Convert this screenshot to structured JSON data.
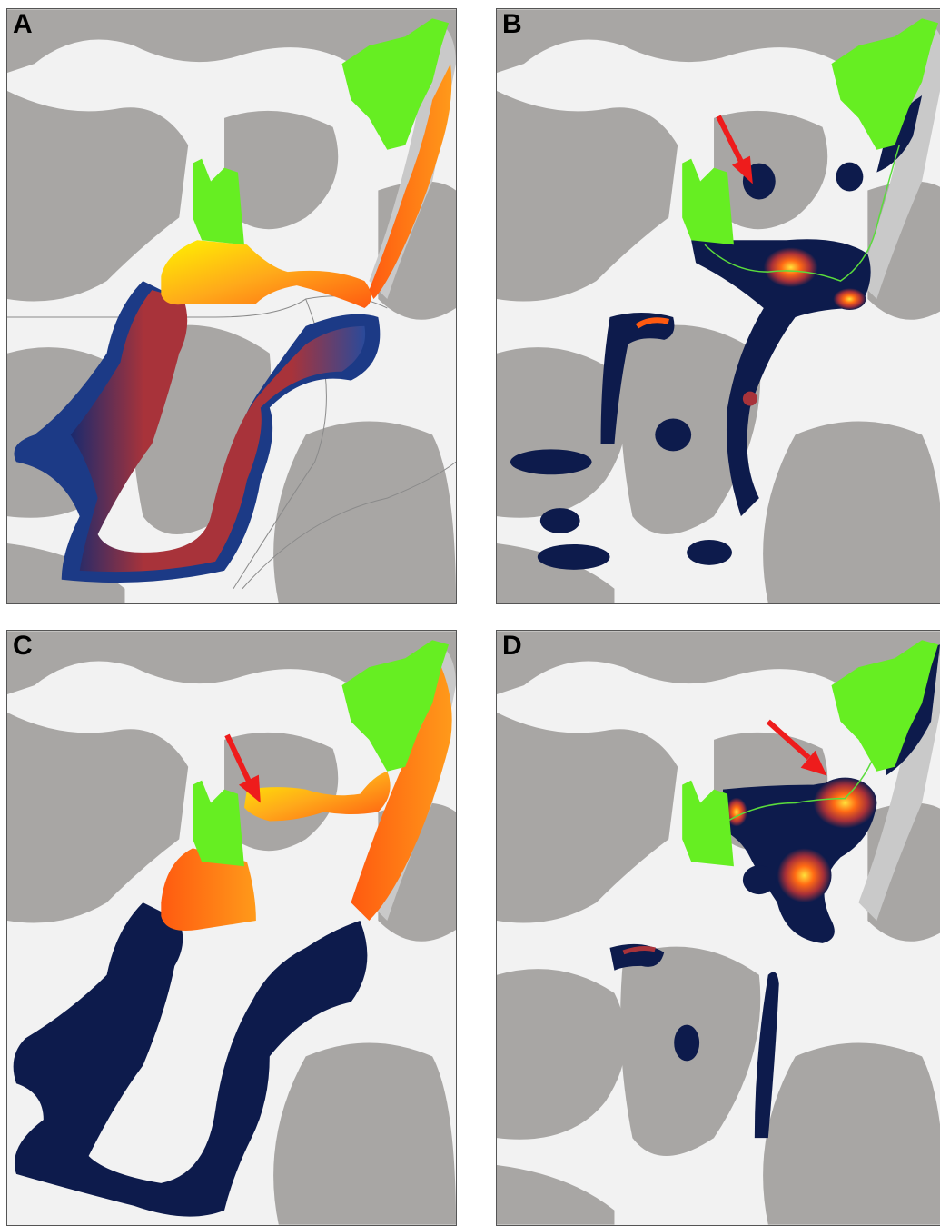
{
  "figure": {
    "panels": [
      {
        "label": "A",
        "scenario": "wide-corridor",
        "arrow": false
      },
      {
        "label": "B",
        "scenario": "patch-centrality",
        "arrow": true
      },
      {
        "label": "C",
        "scenario": "wide-corridor",
        "arrow": true
      },
      {
        "label": "D",
        "scenario": "patch-centrality",
        "arrow": true
      }
    ],
    "colors": {
      "background": "#f2f2f2",
      "land": "#a8a6a4",
      "river": "#c9c9c9",
      "roads": "#8a8a8a",
      "urban": "#1e1e1e",
      "protected_area": "#66ee22",
      "low_value": "#0d1b4c",
      "mid_value": "#b8332e",
      "high_value": "#ff7a1a",
      "peak_value": "#fff200",
      "arrow": "#ee1c1c",
      "connector_line": "#5bdc3c"
    }
  }
}
